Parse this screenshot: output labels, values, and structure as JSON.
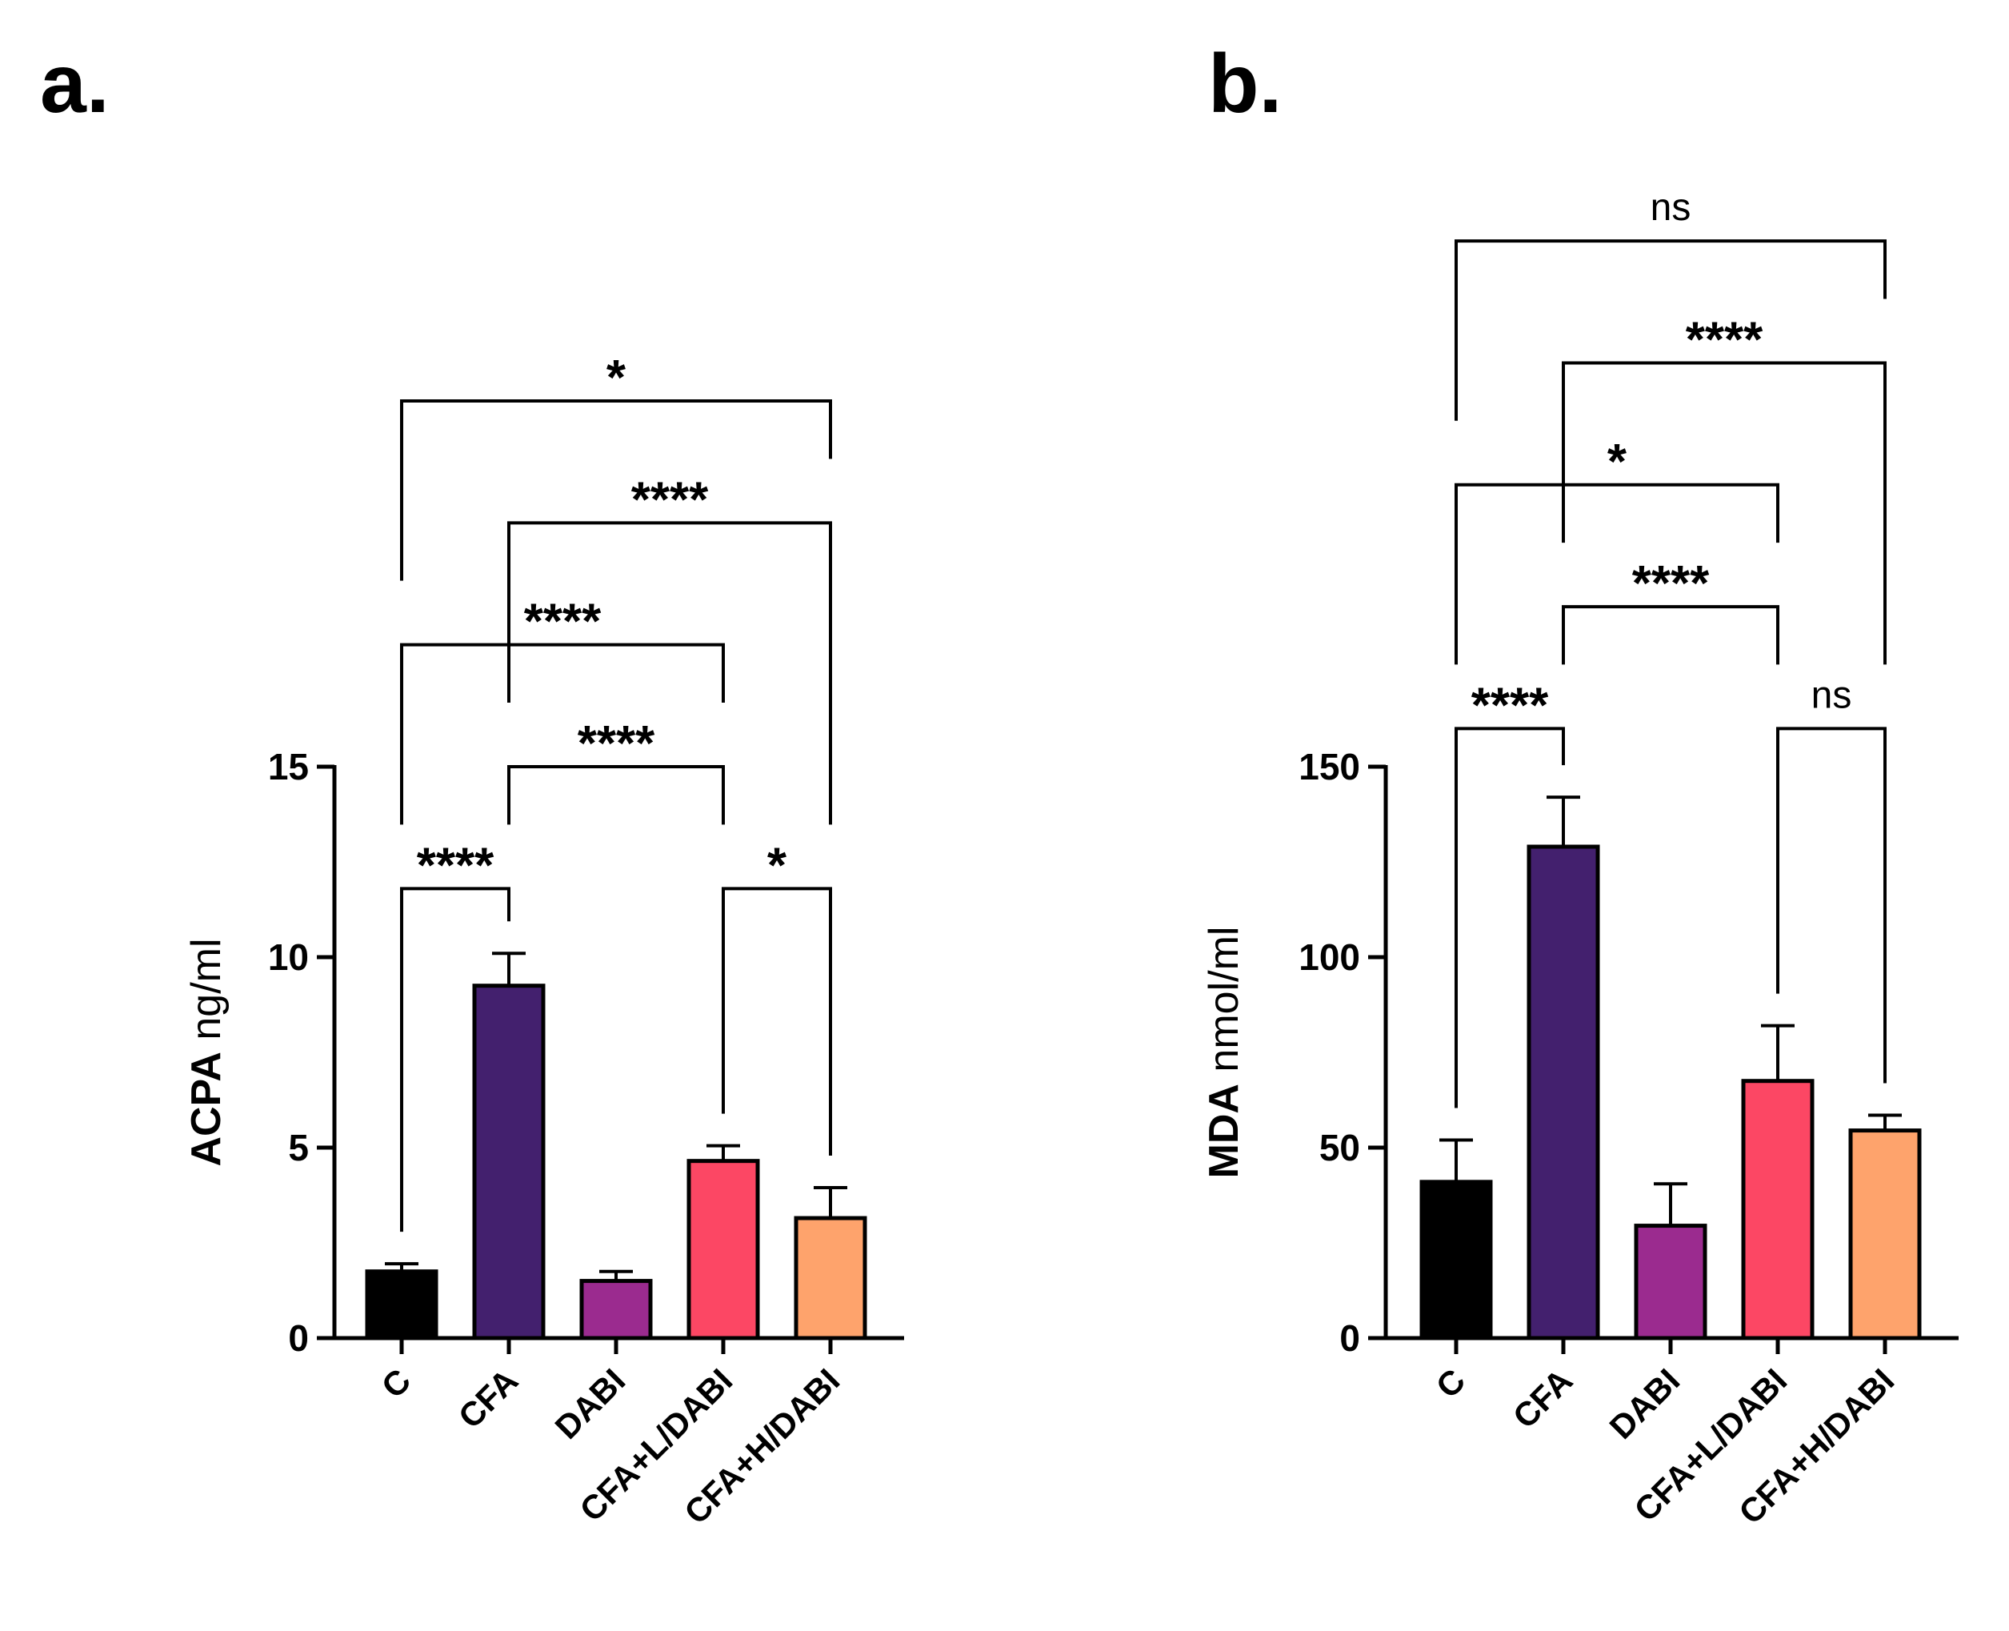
{
  "colors": {
    "C": "#000000",
    "CFA": "#43206e",
    "DABI": "#9b2b8f",
    "CFA+L/DABI": "#fc4764",
    "CFA+H/DABI": "#fea36c"
  },
  "chart_data": [
    {
      "panel_label": "a.",
      "type": "bar",
      "categories": [
        "C",
        "CFA",
        "DABI",
        "CFA+L/DABI",
        "CFA+H/DABI"
      ],
      "values": [
        1.75,
        9.25,
        1.5,
        4.65,
        3.15
      ],
      "errors": [
        0.2,
        0.85,
        0.25,
        0.4,
        0.8
      ],
      "ylabel_main": "ACPA",
      "ylabel_unit": "ng/ml",
      "ylim": [
        0,
        15
      ],
      "yticks": [
        0,
        5,
        10,
        15
      ],
      "comparisons": [
        {
          "from": 0,
          "to": 1,
          "label": "****",
          "y": 11.8
        },
        {
          "from": 3,
          "to": 4,
          "label": "*",
          "y": 11.8
        },
        {
          "from": 1,
          "to": 3,
          "label": "****",
          "y": 15.0
        },
        {
          "from": 0,
          "to": 3,
          "label": "****",
          "y": 18.2
        },
        {
          "from": 1,
          "to": 4,
          "label": "****",
          "y": 21.4
        },
        {
          "from": 0,
          "to": 4,
          "label": "*",
          "y": 24.6
        }
      ]
    },
    {
      "panel_label": "b.",
      "type": "bar",
      "categories": [
        "C",
        "CFA",
        "DABI",
        "CFA+L/DABI",
        "CFA+H/DABI"
      ],
      "values": [
        41,
        129,
        29.5,
        67.5,
        54.5
      ],
      "errors": [
        11,
        13,
        11,
        14.5,
        4
      ],
      "ylabel_main": "MDA",
      "ylabel_unit": "nmol/ml",
      "ylim": [
        0,
        150
      ],
      "yticks": [
        0,
        50,
        100,
        150
      ],
      "comparisons": [
        {
          "from": 0,
          "to": 1,
          "label": "****",
          "y": 160
        },
        {
          "from": 3,
          "to": 4,
          "label": "ns",
          "y": 160
        },
        {
          "from": 1,
          "to": 3,
          "label": "****",
          "y": 192
        },
        {
          "from": 0,
          "to": 3,
          "label": "*",
          "y": 224
        },
        {
          "from": 1,
          "to": 4,
          "label": "****",
          "y": 256
        },
        {
          "from": 0,
          "to": 4,
          "label": "ns",
          "y": 288
        }
      ]
    }
  ]
}
